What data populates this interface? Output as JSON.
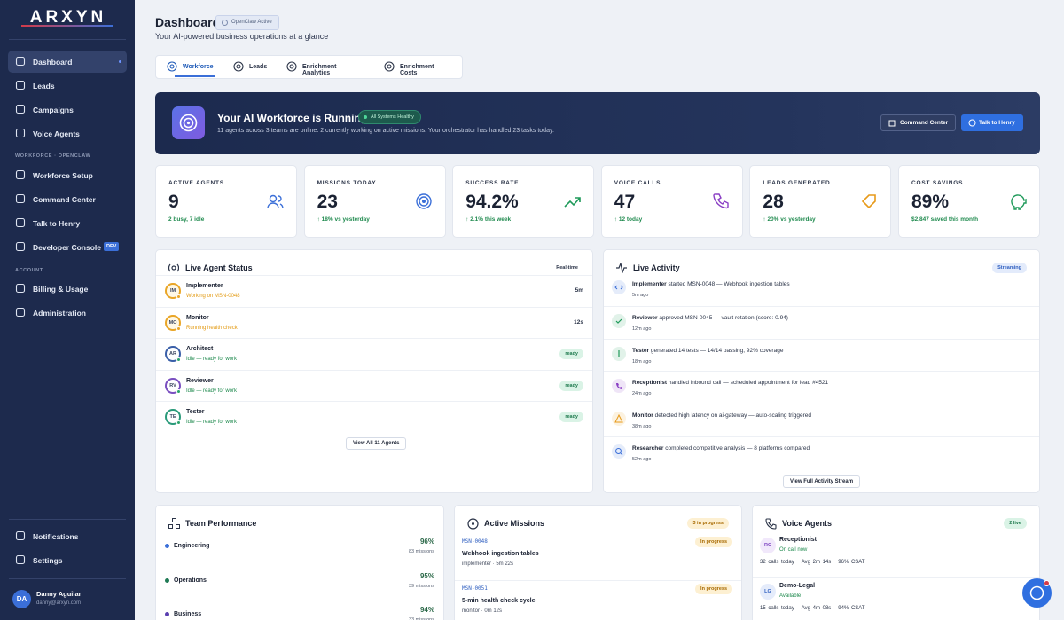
{
  "sidebar": {
    "logo": "ARXYN",
    "main_nav": [
      "Dashboard",
      "Leads",
      "Campaigns",
      "Voice Agents"
    ],
    "workforce_section": "WORKFORCE · OPENCLAW",
    "workforce_nav": [
      "Workforce Setup",
      "Command Center",
      "Talk to Henry",
      "Developer Console"
    ],
    "dev_badge": "DEV",
    "account_section": "ACCOUNT",
    "account_nav": [
      "Billing & Usage",
      "Administration"
    ],
    "bottom_nav": [
      "Notifications",
      "Settings"
    ],
    "user": {
      "initials": "DA",
      "name": "Danny Aguilar",
      "email": "danny@arxyn.com"
    }
  },
  "header": {
    "title": "Dashboard",
    "badge": "OpenClaw Active",
    "subtitle": "Your AI-powered business operations at a glance"
  },
  "tabs": [
    "Workforce",
    "Leads",
    "Enrichment Analytics",
    "Enrichment Costs"
  ],
  "banner": {
    "title": "Your AI Workforce is Running",
    "badge": "All Systems Healthy",
    "text": "11 agents across 3 teams are online. 2 currently working on active missions. Your orchestrator has handled 23 tasks today.",
    "buttons": [
      "Command Center",
      "Talk to Henry"
    ]
  },
  "stats": [
    {
      "label": "ACTIVE AGENTS",
      "value": "9",
      "note": "2 busy, 7 idle",
      "color": "#3b6fd8"
    },
    {
      "label": "MISSIONS TODAY",
      "value": "23",
      "note": "↑ 18% vs yesterday",
      "color": "#3b6fd8"
    },
    {
      "label": "SUCCESS RATE",
      "value": "94.2%",
      "note": "↑ 2.1% this week",
      "color": "#1f9a5a"
    },
    {
      "label": "VOICE CALLS",
      "value": "47",
      "note": "↑ 12 today",
      "color": "#8a3fc4"
    },
    {
      "label": "LEADS GENERATED",
      "value": "28",
      "note": "↑ 20% vs yesterday",
      "color": "#e79a1a"
    },
    {
      "label": "COST SAVINGS",
      "value": "89%",
      "note": "$2,847 saved this month",
      "color": "#1f9a5a"
    }
  ],
  "agent_status": {
    "title": "Live Agent Status",
    "badge": "Real-time",
    "agents": [
      {
        "initials": "IM",
        "name": "Implementer",
        "status": "Working on MSN-0048",
        "time": "5m",
        "color": "#e9a526"
      },
      {
        "initials": "MO",
        "name": "Monitor",
        "status": "Running health check",
        "time": "12s",
        "color": "#e9a526"
      },
      {
        "initials": "AR",
        "name": "Architect",
        "status": "Idle — ready for work",
        "badge": "ready",
        "color": "#3a5fa8"
      },
      {
        "initials": "RV",
        "name": "Reviewer",
        "status": "Idle — ready for work",
        "badge": "ready",
        "color": "#7a4fc0"
      },
      {
        "initials": "TE",
        "name": "Tester",
        "status": "Idle — ready for work",
        "badge": "ready",
        "color": "#2a9a7a"
      }
    ],
    "button": "View All 11 Agents"
  },
  "activity": {
    "title": "Live Activity",
    "badge": "Streaming",
    "items": [
      {
        "actor": "Implementer",
        "text": "started MSN-0048 — Webhook ingestion tables",
        "time": "5m ago",
        "color": "#3b6fd8"
      },
      {
        "actor": "Reviewer",
        "text": "approved MSN-0045 — vault rotation (score: 0.94)",
        "time": "12m ago",
        "color": "#1f9a5a"
      },
      {
        "actor": "Tester",
        "text": "generated 14 tests — 14/14 passing, 92% coverage",
        "time": "18m ago",
        "color": "#1f9a5a"
      },
      {
        "actor": "Receptionist",
        "text": "handled inbound call — scheduled appointment for lead #4521",
        "time": "24m ago",
        "color": "#8a3fc4"
      },
      {
        "actor": "Monitor",
        "text": "detected high latency on ai-gateway — auto-scaling triggered",
        "time": "38m ago",
        "color": "#e79a1a"
      },
      {
        "actor": "Researcher",
        "text": "completed competitive analysis — 8 platforms compared",
        "time": "52m ago",
        "color": "#3b6fd8"
      }
    ],
    "button": "View Full Activity Stream"
  },
  "team_performance": {
    "title": "Team Performance",
    "teams": [
      {
        "name": "Engineering",
        "rate": "96%",
        "missions": "83 missions",
        "color": "#3b6fd8"
      },
      {
        "name": "Operations",
        "rate": "95%",
        "missions": "39 missions",
        "color": "#1f7a55"
      },
      {
        "name": "Business",
        "rate": "94%",
        "missions": "33 missions",
        "color": "#5a3fb0"
      }
    ]
  },
  "missions": {
    "title": "Active Missions",
    "badge": "3 in progress",
    "items": [
      {
        "id": "MSN-0048",
        "name": "Webhook ingestion tables",
        "meta": "implementer · 5m 22s",
        "status": "In progress"
      },
      {
        "id": "MSN-0051",
        "name": "5-min health check cycle",
        "meta": "monitor · 0m 12s",
        "status": "In progress"
      }
    ]
  },
  "voice_agents": {
    "title": "Voice Agents",
    "badge": "2 live",
    "agents": [
      {
        "initials": "RC",
        "name": "Receptionist",
        "status": "On call now",
        "calls": "32 calls today",
        "avg": "Avg 2m 14s",
        "csat": "96% CSAT"
      },
      {
        "initials": "LG",
        "name": "Demo-Legal",
        "status": "Available",
        "calls": "15 calls today",
        "avg": "Avg 4m 08s",
        "csat": "94% CSAT"
      }
    ]
  }
}
